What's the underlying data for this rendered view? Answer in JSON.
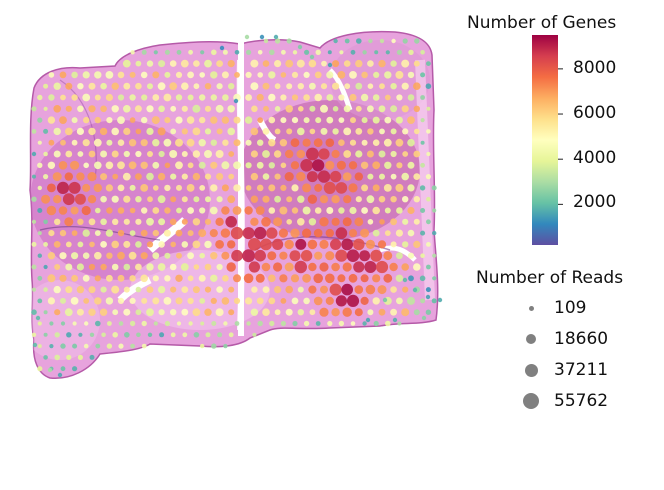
{
  "chart_data": {
    "type": "scatter",
    "title": "",
    "xlabel": "",
    "ylabel": "",
    "axes": "off",
    "background": "H&E tissue section image",
    "color_legend": {
      "title": "Number of Genes",
      "colormap": "Spectral_r",
      "range": [
        200,
        9500
      ],
      "ticks": [
        "2000",
        "4000",
        "6000",
        "8000"
      ],
      "tick_values": [
        2000,
        4000,
        6000,
        8000
      ]
    },
    "size_legend": {
      "title": "Number of Reads",
      "entries": [
        "109",
        "18660",
        "37211",
        "55762"
      ],
      "values": [
        109,
        18660,
        37211,
        55762
      ]
    },
    "points_note": "spots on a grid over the tissue; colour = number of genes, size = number of reads"
  },
  "colors": {
    "tissue_light": "#f2b8e8",
    "tissue_mid": "#d98ad0",
    "tissue_dark": "#a8509e",
    "legend_dot": "#808080"
  }
}
